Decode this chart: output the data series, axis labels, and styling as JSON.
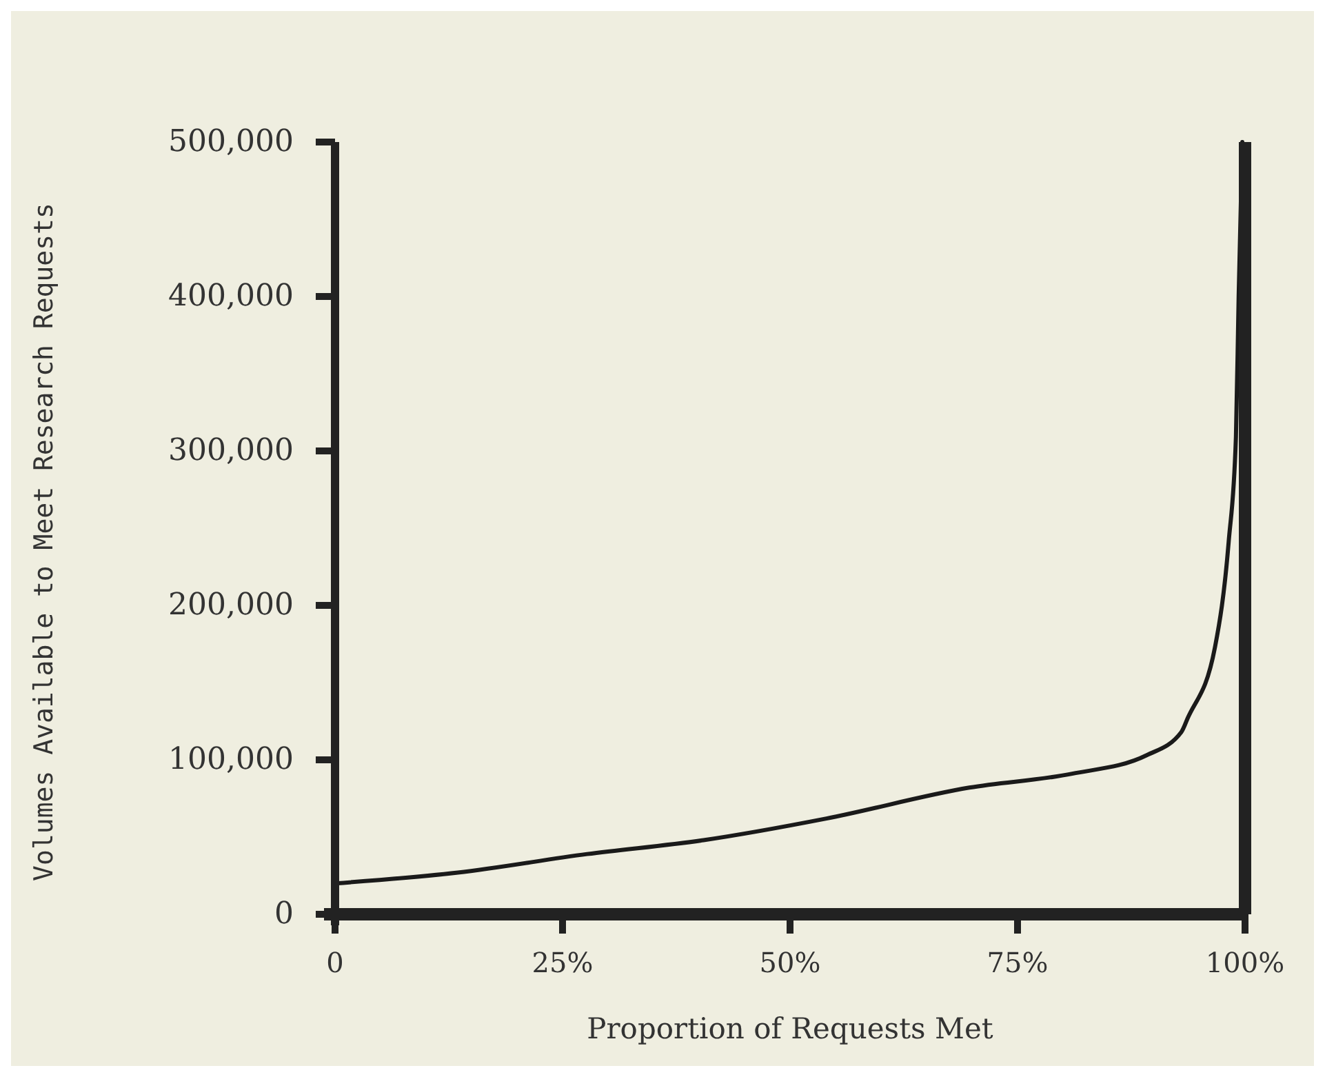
{
  "chart_data": {
    "type": "line",
    "xlabel": "Proportion of Requests Met",
    "ylabel": "Volumes Available to Meet Research Requests",
    "x": [
      0,
      13.5,
      27.7,
      40.5,
      54,
      69.7,
      81,
      89.2,
      93,
      93.7,
      96.7,
      98.2,
      99,
      99.3,
      99.7
    ],
    "values": [
      20000,
      27000,
      39000,
      48000,
      62000,
      82000,
      91000,
      103000,
      118000,
      127000,
      173000,
      241000,
      309000,
      400000,
      500000
    ],
    "color": "#1a1a1a",
    "marker": "none",
    "line_style": "solid",
    "grid": false,
    "xlim": [
      0,
      100
    ],
    "xticks": [
      {
        "value": 0,
        "label": "0"
      },
      {
        "value": 25,
        "label": "25%"
      },
      {
        "value": 50,
        "label": "50%"
      },
      {
        "value": 75,
        "label": "75%"
      },
      {
        "value": 100,
        "label": "100%"
      }
    ],
    "ylim": [
      0,
      500000
    ],
    "yticks": [
      {
        "value": 0,
        "label": "0"
      },
      {
        "value": 100000,
        "label": "100,000"
      },
      {
        "value": 200000,
        "label": "200,000"
      },
      {
        "value": 300000,
        "label": "300,000"
      },
      {
        "value": 400000,
        "label": "400,000"
      },
      {
        "value": 500000,
        "label": "500,000"
      }
    ]
  }
}
